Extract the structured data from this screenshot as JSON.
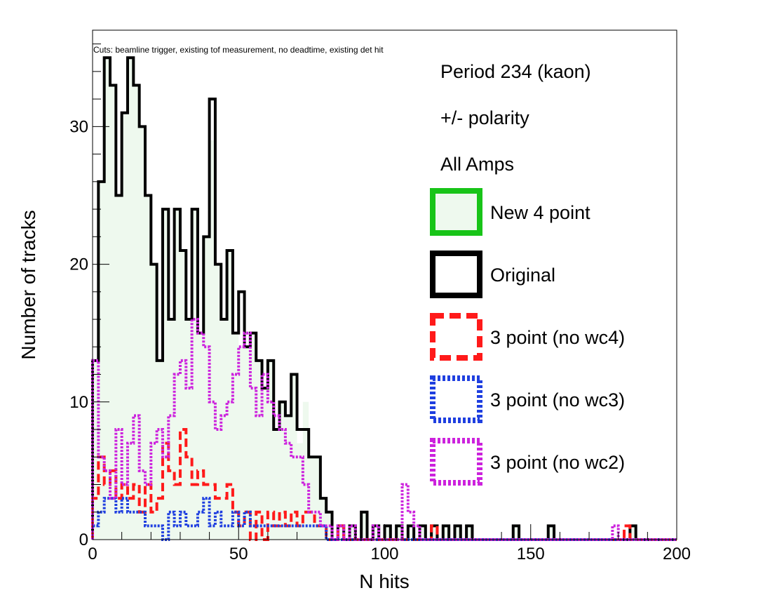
{
  "chart_data": {
    "type": "histogram",
    "xlabel": "N hits",
    "ylabel": "Number of tracks",
    "cuts_note": "Cuts: beamline trigger, existing tof measurement, no deadtime, existing det hit",
    "xlim": [
      0,
      200
    ],
    "ylim": [
      0,
      37
    ],
    "bin_width": 2,
    "xticks": [
      0,
      50,
      100,
      150,
      200
    ],
    "yticks": [
      0,
      10,
      20,
      30
    ],
    "legend_position": "top-right",
    "legend_header": [
      "Period 234 (kaon)",
      "+/- polarity",
      "All Amps"
    ],
    "series": [
      {
        "name": "New 4 point",
        "color": "#18c418",
        "fill": "#eef9ee",
        "style": "solid",
        "legend_swatch": "filled-box",
        "draw_line": false,
        "values": [
          13,
          26,
          35,
          33,
          25,
          31,
          35,
          33,
          30,
          25,
          20,
          13,
          24,
          16,
          24,
          21,
          16,
          24,
          15,
          22,
          29,
          20,
          16,
          21,
          15,
          14,
          14,
          15,
          13,
          11,
          13,
          8,
          10,
          9,
          12,
          7,
          10,
          6,
          6,
          3,
          2,
          0,
          1,
          0,
          1,
          0,
          2,
          0,
          1,
          0,
          1,
          0,
          1,
          0,
          1,
          0,
          1,
          0,
          1,
          0,
          1,
          0,
          1,
          0,
          1,
          0,
          0,
          0,
          0,
          0,
          0,
          0,
          1,
          0,
          0,
          0,
          0,
          0,
          1,
          0,
          0,
          0,
          0,
          0,
          0,
          0,
          0,
          0,
          0,
          0,
          0,
          0,
          1,
          0,
          0,
          0,
          0,
          0,
          0,
          0
        ]
      },
      {
        "name": "Original",
        "color": "#000000",
        "style": "solid",
        "legend_swatch": "box",
        "draw_line": true,
        "values": [
          13,
          26,
          35,
          33,
          25,
          31,
          35,
          33,
          30,
          25,
          20,
          13,
          24,
          16,
          24,
          21,
          16,
          24,
          15,
          22,
          32,
          20,
          16,
          21,
          15,
          18,
          14,
          15,
          13,
          11,
          13,
          8,
          10,
          9,
          12,
          8,
          8,
          6,
          6,
          3,
          2,
          0,
          1,
          0,
          1,
          0,
          2,
          0,
          1,
          0,
          1,
          0,
          1,
          0,
          1,
          0,
          1,
          0,
          1,
          0,
          1,
          0,
          1,
          0,
          1,
          0,
          0,
          0,
          0,
          0,
          0,
          0,
          1,
          0,
          0,
          0,
          0,
          0,
          1,
          0,
          0,
          0,
          0,
          0,
          0,
          0,
          0,
          0,
          0,
          0,
          0,
          0,
          1,
          0,
          0,
          0,
          0,
          0,
          0,
          0
        ]
      },
      {
        "name": "3 point (no wc4)",
        "color": "#ff1a1a",
        "style": "dashed",
        "legend_swatch": "box",
        "draw_line": true,
        "values": [
          3,
          6,
          4,
          5,
          3,
          4,
          3,
          4,
          2,
          4,
          2,
          3,
          7,
          5,
          4,
          8,
          6,
          4,
          5,
          4,
          4,
          3,
          3,
          4,
          2,
          1,
          2,
          0,
          2,
          0,
          2,
          1,
          2,
          1,
          2,
          1,
          2,
          2,
          1,
          1,
          0,
          0,
          1,
          0,
          0,
          0,
          0,
          0,
          0,
          0,
          0,
          0,
          0,
          0,
          0,
          0,
          0,
          0,
          1,
          0,
          0,
          0,
          0,
          0,
          0,
          0,
          0,
          0,
          0,
          0,
          0,
          0,
          0,
          0,
          0,
          0,
          0,
          0,
          0,
          0,
          0,
          0,
          0,
          0,
          0,
          0,
          0,
          0,
          0,
          0,
          0,
          1,
          0,
          0,
          0,
          0,
          0,
          0,
          0,
          0
        ]
      },
      {
        "name": "3 point (no wc3)",
        "color": "#1f3fe0",
        "style": "dotted",
        "legend_swatch": "box",
        "draw_line": true,
        "values": [
          1,
          2,
          3,
          3,
          2,
          3,
          2,
          2,
          2,
          1,
          1,
          1,
          0,
          2,
          1,
          2,
          1,
          1,
          2,
          3,
          1,
          2,
          1,
          1,
          2,
          1,
          2,
          1,
          1,
          1,
          1,
          1,
          1,
          1,
          1,
          1,
          1,
          1,
          1,
          1,
          0,
          0,
          0,
          0,
          0,
          0,
          0,
          0,
          0,
          0,
          0,
          0,
          0,
          0,
          0,
          0,
          0,
          0,
          0,
          0,
          0,
          0,
          0,
          0,
          0,
          0,
          0,
          0,
          0,
          0,
          0,
          0,
          0,
          0,
          0,
          0,
          0,
          0,
          0,
          0,
          0,
          0,
          0,
          0,
          0,
          0,
          0,
          0,
          0,
          0,
          0,
          0,
          0,
          0,
          0,
          0,
          0,
          0,
          0,
          0
        ]
      },
      {
        "name": "3 point (no wc2)",
        "color": "#cc22dd",
        "style": "dotted",
        "legend_swatch": "box",
        "draw_line": true,
        "values": [
          13,
          6,
          5,
          3,
          8,
          4,
          7,
          9,
          5,
          4,
          7,
          8,
          6,
          9,
          12,
          13,
          11,
          16,
          15,
          14,
          10,
          8,
          9,
          10,
          12,
          14,
          15,
          11,
          9,
          12,
          10,
          9,
          8,
          7,
          6,
          6,
          4,
          2,
          2,
          1,
          1,
          0,
          1,
          0,
          1,
          0,
          0,
          0,
          1,
          0,
          0,
          0,
          0,
          4,
          2,
          1,
          0,
          0,
          0,
          0,
          0,
          0,
          0,
          0,
          0,
          0,
          0,
          0,
          0,
          0,
          0,
          0,
          0,
          0,
          0,
          0,
          0,
          0,
          0,
          0,
          0,
          0,
          0,
          0,
          0,
          0,
          0,
          0,
          0,
          1,
          0,
          0,
          0,
          0,
          0,
          0,
          0,
          0,
          0,
          0
        ]
      }
    ]
  }
}
